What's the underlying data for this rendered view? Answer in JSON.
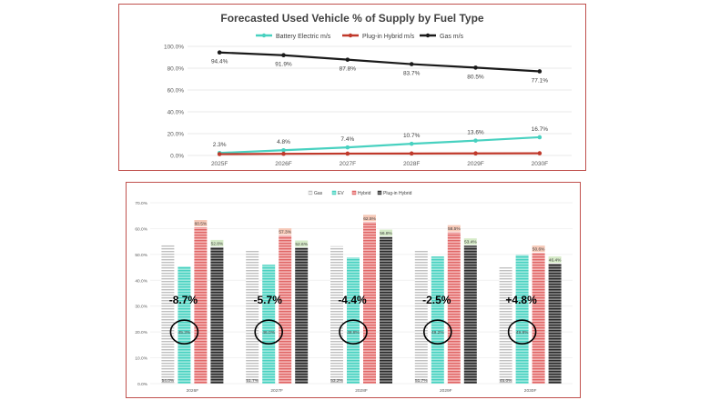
{
  "chart_data": [
    {
      "type": "line",
      "title": "Forecasted Used Vehicle % of Supply by Fuel Type",
      "categories": [
        "2025F",
        "2026F",
        "2027F",
        "2028F",
        "2029F",
        "2030F"
      ],
      "y_tick_labels": [
        "0.0%",
        "20.0%",
        "40.0%",
        "60.0%",
        "80.0%",
        "100.0%"
      ],
      "ylim": [
        0,
        100
      ],
      "legend_position": "top",
      "series": [
        {
          "name": "Battery Electric m/s",
          "color": "#48d1c0",
          "values": [
            2.3,
            4.8,
            7.4,
            10.7,
            13.6,
            16.7
          ],
          "labels": [
            "2.3%",
            "4.8%",
            "7.4%",
            "10.7%",
            "13.6%",
            "16.7%"
          ]
        },
        {
          "name": "Plug-in Hybrid m/s",
          "color": "#c0392b",
          "values": [
            1.2,
            1.5,
            1.7,
            1.8,
            1.9,
            2.0
          ],
          "labels": []
        },
        {
          "name": "Gas m/s",
          "color": "#1a1a1a",
          "values": [
            94.4,
            91.9,
            87.8,
            83.7,
            80.5,
            77.1
          ],
          "labels": [
            "94.4%",
            "91.9%",
            "87.8%",
            "83.7%",
            "80.5%",
            "77.1%"
          ]
        }
      ]
    },
    {
      "type": "bar",
      "categories": [
        "2026F",
        "2027F",
        "2028F",
        "2029F",
        "2030F"
      ],
      "y_tick_labels": [
        "0.0%",
        "10.0%",
        "20.0%",
        "30.0%",
        "40.0%",
        "50.0%",
        "60.0%",
        "70.0%"
      ],
      "ylim": [
        0,
        70
      ],
      "legend_position": "top",
      "series": [
        {
          "name": "Gas",
          "color": "#bfbfbf",
          "values": [
            54.0,
            51.7,
            53.2,
            51.7,
            45.0
          ],
          "labels": [
            "54.0%",
            "51.7%",
            "53.2%",
            "51.7%",
            "45.0%"
          ]
        },
        {
          "name": "EV",
          "color": "#48d1c0",
          "values": [
            45.3,
            46.0,
            48.8,
            49.2,
            49.8
          ],
          "labels": [
            "45.3%",
            "46.0%",
            "48.8%",
            "49.2%",
            "49.8%"
          ]
        },
        {
          "name": "Hybrid",
          "color": "#e06666",
          "values": [
            60.5,
            57.3,
            62.5,
            58.5,
            50.6
          ],
          "labels": [
            "60.5%",
            "57.3%",
            "62.5%",
            "58.5%",
            "50.6%"
          ]
        },
        {
          "name": "Plug-in Hybrid",
          "color": "#404040",
          "values": [
            52.8,
            52.6,
            56.8,
            53.4,
            46.4
          ],
          "labels": [
            "52.8%",
            "52.6%",
            "56.8%",
            "53.4%",
            "46.4%"
          ]
        }
      ],
      "annotations": [
        "-8.7%",
        "-5.7%",
        "-4.4%",
        "-2.5%",
        "+4.8%"
      ]
    }
  ]
}
